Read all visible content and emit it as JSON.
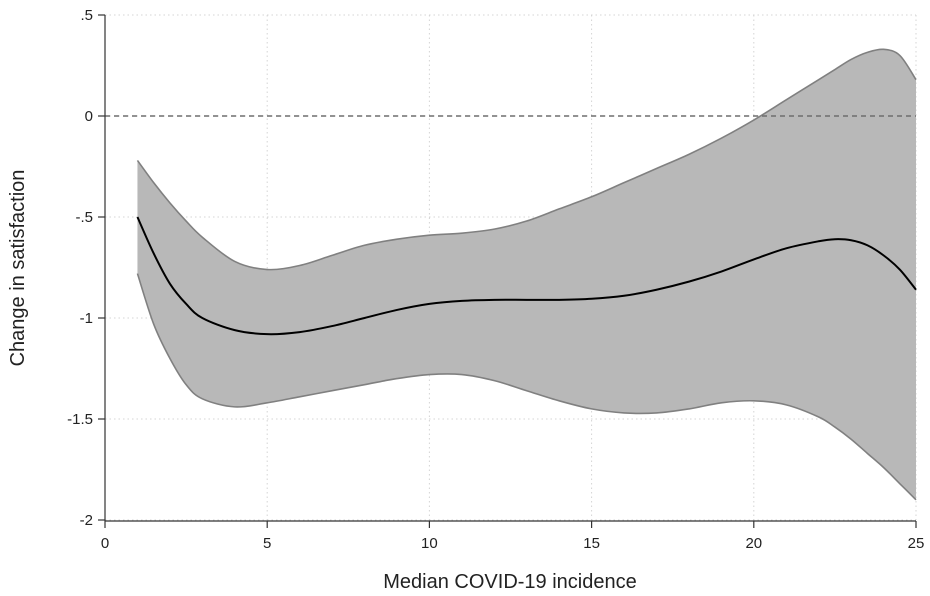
{
  "chart_data": {
    "type": "line",
    "xlabel": "Median COVID-19 incidence",
    "ylabel": "Change in satisfaction",
    "xlim": [
      0,
      25
    ],
    "ylim": [
      -2,
      0.5
    ],
    "x_ticks": [
      0,
      5,
      10,
      15,
      20,
      25
    ],
    "x_tick_labels": [
      "0",
      "5",
      "10",
      "15",
      "20",
      "25"
    ],
    "y_ticks": [
      0.5,
      0,
      -0.5,
      -1,
      -1.5,
      -2
    ],
    "y_tick_labels": [
      ".5",
      "0",
      "-.5",
      "-1",
      "-1.5",
      "-2"
    ],
    "grid": true,
    "reference_line": {
      "y": 0,
      "style": "dashed"
    },
    "x": [
      1,
      1.5,
      2,
      2.5,
      3,
      4,
      5,
      6,
      7,
      8,
      9,
      10,
      11,
      12,
      13,
      14,
      15,
      16,
      17,
      18,
      19,
      20,
      21,
      22,
      22.5,
      23,
      23.5,
      24,
      24.5,
      25
    ],
    "series": [
      {
        "values": [
          -0.5,
          -0.68,
          -0.83,
          -0.93,
          -1.0,
          -1.06,
          -1.08,
          -1.07,
          -1.04,
          -1.0,
          -0.96,
          -0.93,
          -0.915,
          -0.91,
          -0.91,
          -0.91,
          -0.905,
          -0.89,
          -0.86,
          -0.82,
          -0.77,
          -0.71,
          -0.655,
          -0.62,
          -0.61,
          -0.615,
          -0.64,
          -0.69,
          -0.76,
          -0.86
        ],
        "lower": [
          -0.78,
          -1.03,
          -1.2,
          -1.33,
          -1.4,
          -1.44,
          -1.42,
          -1.39,
          -1.36,
          -1.33,
          -1.3,
          -1.28,
          -1.28,
          -1.31,
          -1.36,
          -1.41,
          -1.45,
          -1.47,
          -1.47,
          -1.45,
          -1.42,
          -1.41,
          -1.43,
          -1.49,
          -1.54,
          -1.6,
          -1.67,
          -1.74,
          -1.82,
          -1.9
        ],
        "upper": [
          -0.22,
          -0.33,
          -0.43,
          -0.52,
          -0.6,
          -0.72,
          -0.76,
          -0.74,
          -0.69,
          -0.64,
          -0.61,
          -0.59,
          -0.58,
          -0.56,
          -0.52,
          -0.46,
          -0.4,
          -0.33,
          -0.26,
          -0.19,
          -0.11,
          -0.02,
          0.08,
          0.18,
          0.23,
          0.28,
          0.315,
          0.33,
          0.3,
          0.18
        ]
      }
    ],
    "colors": {
      "band_fill": "#b8b8b8",
      "band_edge": "#808080",
      "line": "#000000",
      "grid": "#d4d4d4",
      "reference": "#6e6e6e",
      "axis": "#333333"
    }
  }
}
